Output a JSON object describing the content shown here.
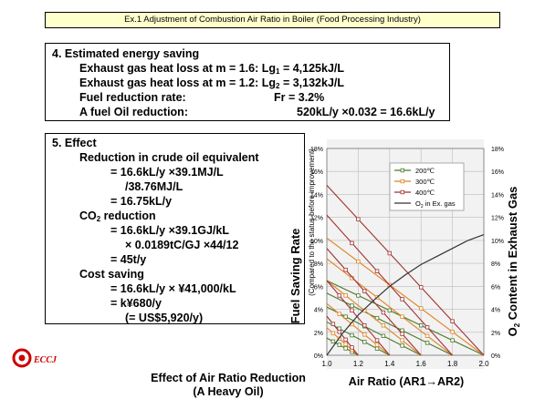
{
  "header": {
    "title": "Ex.1 Adjustment of Combustion Air Ratio in Boiler (Food Processing Industry)"
  },
  "section4": {
    "heading": "4. Estimated energy saving",
    "line1_label": "Exhaust gas heat loss at m = 1.6: Lg",
    "line1_sub": "1",
    "line1_value": " = 4,125kJ/L",
    "line2_label": "Exhaust gas heat loss at m = 1.2: Lg",
    "line2_sub": "2",
    "line2_value": " = 3,132kJ/L",
    "line3_label": "Fuel reduction rate:",
    "line3_value": "Fr = 3.2%",
    "line4_label": "A fuel Oil reduction:",
    "line4_value": "520kL/y ×0.032 = 16.6kL/y"
  },
  "section5": {
    "heading": "5. Effect",
    "crude_heading": "Reduction in crude oil equivalent",
    "crude_l1": "= 16.6kL/y ×39.1MJ/L",
    "crude_l2": "/38.76MJ/L",
    "crude_l3": "= 16.75kL/y",
    "co2_heading_pre": "CO",
    "co2_heading_sub": "2",
    "co2_heading_post": " reduction",
    "co2_l1": "= 16.6kL/y ×39.1GJ/kL",
    "co2_l2": "× 0.0189tC/GJ ×44/12",
    "co2_l3": "= 45t/y",
    "cost_heading": "Cost saving",
    "cost_l1": "= 16.6kL/y × ¥41,000/kL",
    "cost_l2": "= k¥680/y",
    "cost_l3": "(= US$5,920/y)"
  },
  "logo": {
    "text": "ECCJ",
    "color": "#cc0000"
  },
  "caption": {
    "line1": "Effect of Air Ratio Reduction",
    "line2": "(A Heavy Oil)"
  },
  "chart_data": {
    "type": "line",
    "xlabel": "Air Ratio (AR1→AR2)",
    "ylabel_left": "Fuel Saving Rate",
    "ylabel_left_sub": "(Compared to the status before improvement)",
    "ylabel_right_pre": "O",
    "ylabel_right_sub": "2",
    "ylabel_right_post": " Content in Exhaust Gas",
    "x_ticks": [
      "1.0",
      "1.2",
      "1.4",
      "1.6",
      "1.8",
      "2.0"
    ],
    "y_ticks": [
      "0%",
      "2%",
      "4%",
      "6%",
      "8%",
      "10%",
      "12%",
      "14%",
      "16%",
      "18%"
    ],
    "xlim": [
      1.0,
      2.0
    ],
    "ylim": [
      0,
      18
    ],
    "grid": true,
    "legend_position": "top-right",
    "legend": [
      {
        "label": "200℃",
        "color": "#4a7a2a"
      },
      {
        "label": "300℃",
        "color": "#e08020"
      },
      {
        "label": "400℃",
        "color": "#a03030"
      },
      {
        "label_pre": "O",
        "label_sub": "2",
        "label_post": " in Ex. gas",
        "color": "#333333"
      }
    ],
    "colors": {
      "c200": "#4a7a2a",
      "c300": "#e08020",
      "c400": "#a03030",
      "o2": "#333333"
    },
    "series": [
      {
        "name": "200℃",
        "lines": [
          {
            "x": [
              1.0,
              1.2
            ],
            "y": [
              1.5,
              0
            ]
          },
          {
            "x": [
              1.0,
              1.4
            ],
            "y": [
              2.9,
              0
            ]
          },
          {
            "x": [
              1.0,
              1.6
            ],
            "y": [
              4.2,
              0
            ]
          },
          {
            "x": [
              1.0,
              1.8
            ],
            "y": [
              5.4,
              0
            ]
          },
          {
            "x": [
              1.0,
              2.0
            ],
            "y": [
              6.5,
              0
            ]
          }
        ]
      },
      {
        "name": "300℃",
        "lines": [
          {
            "x": [
              1.0,
              1.2
            ],
            "y": [
              2.4,
              0
            ]
          },
          {
            "x": [
              1.0,
              1.4
            ],
            "y": [
              4.5,
              0
            ]
          },
          {
            "x": [
              1.0,
              1.6
            ],
            "y": [
              6.5,
              0
            ]
          },
          {
            "x": [
              1.0,
              1.8
            ],
            "y": [
              8.4,
              0
            ]
          },
          {
            "x": [
              1.0,
              2.0
            ],
            "y": [
              10.2,
              0
            ]
          }
        ]
      },
      {
        "name": "400℃",
        "lines": [
          {
            "x": [
              1.0,
              1.2
            ],
            "y": [
              3.4,
              0
            ]
          },
          {
            "x": [
              1.0,
              1.4
            ],
            "y": [
              6.5,
              0
            ]
          },
          {
            "x": [
              1.0,
              1.6
            ],
            "y": [
              9.3,
              0
            ]
          },
          {
            "x": [
              1.0,
              1.8
            ],
            "y": [
              12.2,
              0
            ]
          },
          {
            "x": [
              1.0,
              2.0
            ],
            "y": [
              14.8,
              0
            ]
          }
        ]
      },
      {
        "name": "O2 in Ex. gas",
        "x": [
          1.0,
          1.1,
          1.2,
          1.3,
          1.4,
          1.5,
          1.6,
          1.7,
          1.8,
          1.9,
          2.0
        ],
        "y": [
          0,
          1.9,
          3.5,
          4.8,
          6.0,
          7.0,
          7.9,
          8.6,
          9.3,
          10.0,
          10.5
        ]
      }
    ]
  }
}
